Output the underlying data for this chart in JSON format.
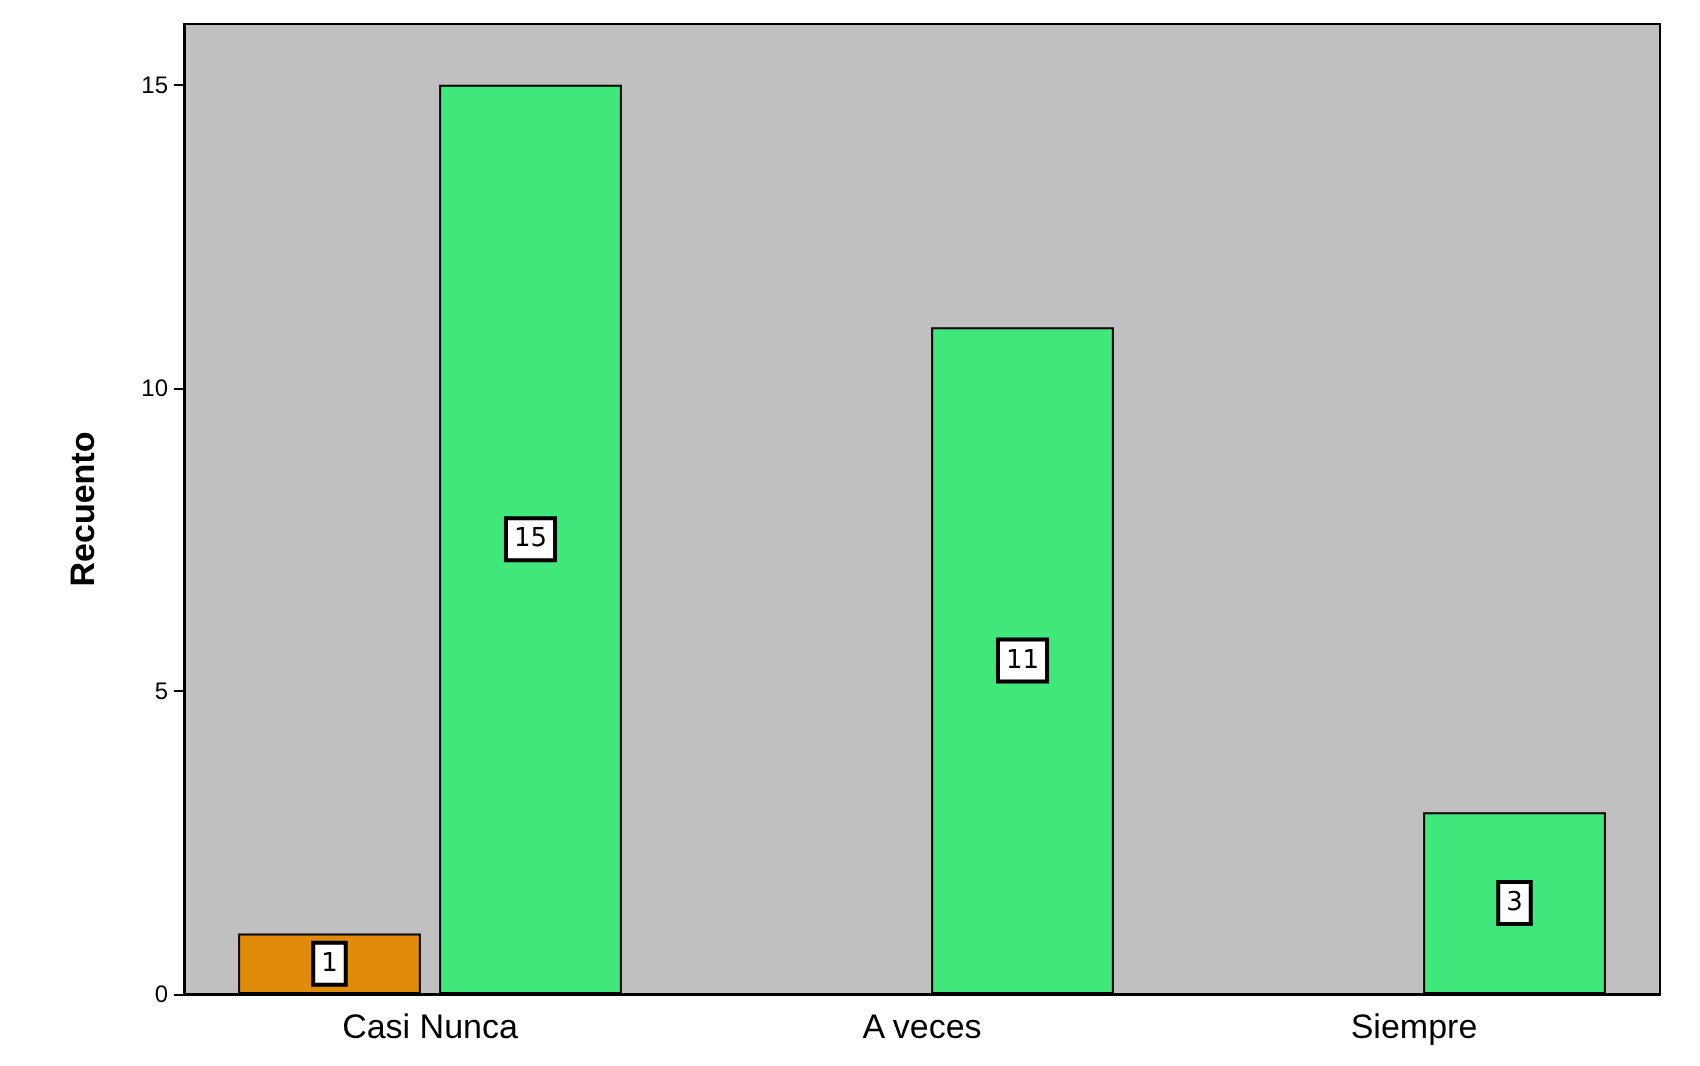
{
  "chart_data": {
    "type": "bar",
    "ylabel": "Recuento",
    "categories": [
      "Casi Nunca",
      "A veces",
      "Siempre"
    ],
    "series": [
      {
        "color": "#e08c0a",
        "values": [
          1,
          null,
          null
        ]
      },
      {
        "color": "#40e87c",
        "values": [
          15,
          11,
          3
        ]
      }
    ],
    "ylim": [
      0,
      16
    ],
    "yticks": [
      0,
      5,
      10,
      15
    ],
    "data_labels": true
  }
}
